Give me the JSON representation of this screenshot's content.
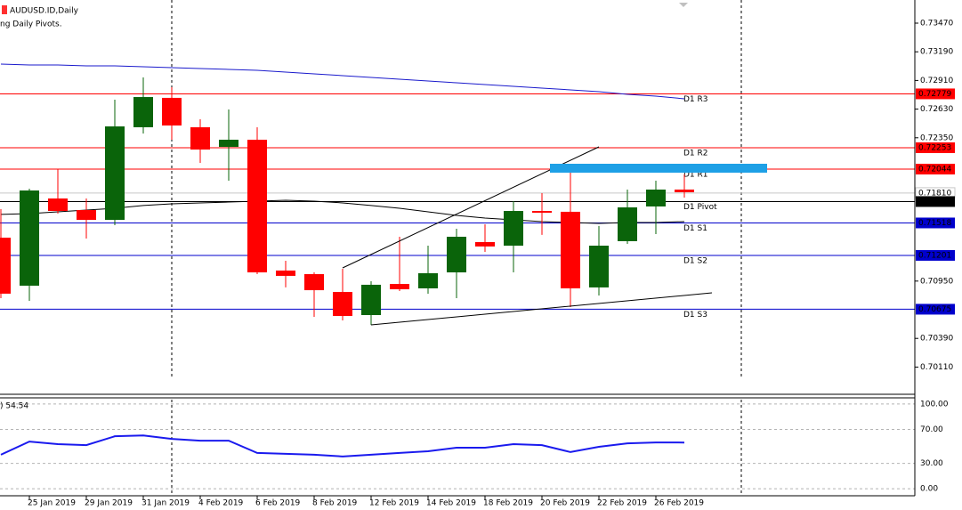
{
  "chart_data": {
    "type": "candlestick",
    "title": "AUDUSD.ID,Daily",
    "subtitle": "ng Daily Pivots.",
    "categories": [
      null,
      "25 Jan 2019",
      null,
      "29 Jan 2019",
      null,
      "31 Jan 2019",
      null,
      "4 Feb 2019",
      null,
      "6 Feb 2019",
      null,
      "8 Feb 2019",
      null,
      "12 Feb 2019",
      null,
      "14 Feb 2019",
      null,
      "18 Feb 2019",
      null,
      "20 Feb 2019",
      null,
      "22 Feb 2019",
      null,
      "26 Feb 2019",
      null
    ],
    "open": [
      0.71374,
      0.70905,
      0.71757,
      0.71644,
      0.71548,
      0.72453,
      0.7274,
      0.72453,
      0.72261,
      0.72331,
      0.71053,
      0.71018,
      0.70844,
      0.70618,
      0.70922,
      0.70879,
      0.71035,
      0.71331,
      0.71296,
      0.71635,
      0.71627,
      0.70888,
      0.7134,
      0.71679,
      0.71844
    ],
    "high": [
      0.71653,
      0.71853,
      0.72044,
      0.71757,
      0.72722,
      0.7294,
      0.72844,
      0.72531,
      0.72627,
      0.72453,
      0.71148,
      0.71035,
      0.7107,
      0.70948,
      0.71383,
      0.71296,
      0.71461,
      0.71505,
      0.71731,
      0.71809,
      0.72044,
      0.71488,
      0.71844,
      0.71931,
      0.71992
    ],
    "low": [
      0.70783,
      0.70757,
      0.71609,
      0.71366,
      0.71496,
      0.72392,
      0.72331,
      0.72105,
      0.71931,
      0.71018,
      0.70888,
      0.70601,
      0.70566,
      0.70522,
      0.70853,
      0.70827,
      0.70783,
      0.71235,
      0.71035,
      0.71401,
      0.70696,
      0.70809,
      0.71314,
      0.71409,
      0.71766
    ],
    "close": [
      0.70827,
      0.71835,
      0.71635,
      0.71548,
      0.72461,
      0.72748,
      0.7247,
      0.72235,
      0.72331,
      0.71035,
      0.71001,
      0.70861,
      0.70609,
      0.70914,
      0.7087,
      0.71027,
      0.71383,
      0.71288,
      0.71635,
      0.71618,
      0.70879,
      0.71296,
      0.7167,
      0.71844,
      0.71818
    ],
    "up_color": "#0a640a",
    "down_color": "#ff0000",
    "ylim": [
      0.69844,
      0.73696
    ],
    "yticks": [
      {
        "value": 0.7347,
        "label": "0.73470"
      },
      {
        "value": 0.7319,
        "label": "0.73190"
      },
      {
        "value": 0.7291,
        "label": "0.72910"
      },
      {
        "value": 0.7263,
        "label": "0.72630"
      },
      {
        "value": 0.7235,
        "label": "0.72350"
      },
      {
        "value": 0.7095,
        "label": "0.70950"
      },
      {
        "value": 0.7039,
        "label": "0.70390"
      },
      {
        "value": 0.7011,
        "label": "0.70110"
      }
    ],
    "series": [
      {
        "color": "#000000",
        "values": [
          0.71601,
          0.71609,
          0.71627,
          0.71644,
          0.71661,
          0.71688,
          0.71705,
          0.71714,
          0.71722,
          0.71731,
          0.7174,
          0.71731,
          0.71714,
          0.71688,
          0.71661,
          0.71627,
          0.71592,
          0.71566,
          0.71548,
          0.71531,
          0.71522,
          0.71514,
          0.71522,
          0.71522,
          0.71531
        ]
      },
      {
        "color": "#1a1acc",
        "values": [
          0.7307,
          0.73061,
          0.73061,
          0.73053,
          0.73053,
          0.73044,
          0.73035,
          0.73027,
          0.73018,
          0.73009,
          0.72992,
          0.72974,
          0.72957,
          0.7294,
          0.72922,
          0.72905,
          0.72887,
          0.7287,
          0.72853,
          0.72835,
          0.72818,
          0.728,
          0.72774,
          0.72757,
          0.72731
        ]
      }
    ],
    "pivots": [
      {
        "name": "D1 R3",
        "value": 0.72779,
        "color": "#ff0000"
      },
      {
        "name": "D1 R2",
        "value": 0.72253,
        "color": "#ff0000"
      },
      {
        "name": "D1 R1",
        "value": 0.72044,
        "color": "#ff0000"
      },
      {
        "name": "D1 Pivot",
        "value": 0.71727,
        "color": "#000000"
      },
      {
        "name": "D1 S1",
        "value": 0.71518,
        "color": "#0000cc"
      },
      {
        "name": "D1 S2",
        "value": 0.71201,
        "color": "#0000cc"
      },
      {
        "name": "D1 S3",
        "value": 0.70675,
        "color": "#0000cc"
      }
    ],
    "current_price": {
      "value": 0.7181,
      "label": "0.71810"
    },
    "indicator": {
      "label": ") 54.54",
      "color": "#1a1aee",
      "ylim": [
        -8.2,
        107.2
      ],
      "yticks": [
        {
          "value": 100,
          "label": "100.00"
        },
        {
          "value": 70,
          "label": "70.00"
        },
        {
          "value": 30,
          "label": "30.00"
        },
        {
          "value": 0,
          "label": "0.00"
        }
      ],
      "values": [
        40.2,
        55.7,
        52.6,
        51.5,
        61.9,
        62.9,
        58.8,
        56.7,
        56.7,
        42.3,
        41.2,
        40.2,
        38.1,
        40.2,
        42.3,
        44.3,
        48.5,
        48.5,
        52.6,
        51.5,
        43.3,
        49.5,
        53.6,
        54.6,
        54.54
      ]
    }
  }
}
